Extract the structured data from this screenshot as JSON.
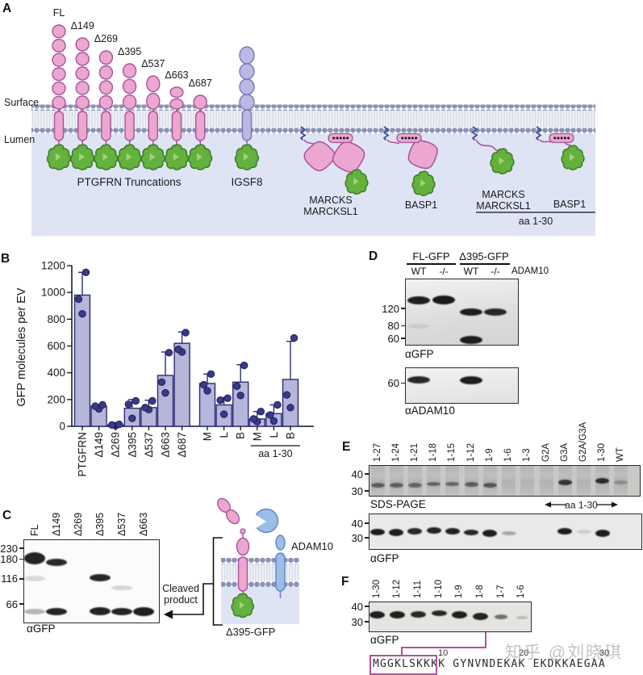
{
  "watermark": "知乎 @刘晓琪",
  "colors": {
    "pink": "#eba7d0",
    "pink_stroke": "#a8539b",
    "purple": "#bcb8e4",
    "purple_stroke": "#7b74ba",
    "green": "#64b13e",
    "green_stroke": "#3e7c27",
    "blue": "#9cbde5",
    "blue_stroke": "#5d86c4",
    "navy": "#2d2d77",
    "bar_fill": "#b6b6da",
    "dot": "#3a3a8c",
    "membrane_bead": "#8a92b6",
    "lumen_bg": "#dfe4f5",
    "anchor_zigzag": "#3b4a94",
    "magenta_box": "#b5519c"
  },
  "panelA": {
    "label": "A",
    "surface_label": "Surface",
    "lumen_label": "Lumen",
    "truncations": [
      {
        "label": "FL",
        "domains": 6
      },
      {
        "label": "Δ149",
        "domains": 5
      },
      {
        "label": "Δ269",
        "domains": 4
      },
      {
        "label": "Δ395",
        "domains": 3
      },
      {
        "label": "Δ537",
        "domains": 2
      },
      {
        "label": "Δ663",
        "domains": 2
      },
      {
        "label": "Δ687",
        "domains": 1
      }
    ],
    "truncations_caption": "PTGFRN Truncations",
    "igsf8": {
      "label": "IGSF8",
      "domains": 4
    },
    "anchored": [
      {
        "type": "marcks-full",
        "label_lines": [
          "MARCKS",
          "MARCKSL1"
        ]
      },
      {
        "type": "basp1-full",
        "label_lines": [
          "BASP1"
        ]
      },
      {
        "type": "marcks-aa30",
        "label_lines": [
          "MARCKS",
          "MARCKSL1"
        ]
      },
      {
        "type": "basp1-aa30",
        "label_lines": [
          "BASP1"
        ]
      }
    ],
    "aa_bracket_label": "aa 1-30"
  },
  "panelB": {
    "label": "B",
    "chart_data": {
      "type": "bar",
      "title": "",
      "xlabel": "",
      "ylabel": "GFP molecules per EV",
      "ylim": [
        0,
        1200
      ],
      "yticks": [
        0,
        200,
        400,
        600,
        800,
        1000,
        1200
      ],
      "grid": false,
      "categories": [
        "PTGFRN",
        "Δ149",
        "Δ269",
        "Δ395",
        "Δ537",
        "Δ663",
        "Δ687",
        "M",
        "L",
        "B",
        "M",
        "L",
        "B"
      ],
      "values": [
        980,
        150,
        10,
        135,
        140,
        380,
        620,
        320,
        160,
        330,
        55,
        95,
        350
      ],
      "error_top": [
        1150,
        163,
        15,
        200,
        195,
        555,
        705,
        390,
        215,
        460,
        110,
        160,
        635
      ],
      "points": [
        [
          840,
          950,
          1150
        ],
        [
          130,
          150,
          160
        ],
        [
          5,
          10,
          15
        ],
        [
          60,
          165,
          190
        ],
        [
          125,
          140,
          190
        ],
        [
          250,
          330,
          550
        ],
        [
          555,
          575,
          700
        ],
        [
          265,
          310,
          390
        ],
        [
          90,
          195,
          210
        ],
        [
          230,
          300,
          455
        ],
        [
          35,
          55,
          110
        ],
        [
          40,
          85,
          160
        ],
        [
          140,
          235,
          660
        ]
      ],
      "group_bracket": {
        "label": "aa 1-30",
        "from": 10,
        "to": 12
      }
    }
  },
  "panelC": {
    "label": "C",
    "lanes": [
      "FL",
      "Δ149",
      "Δ269",
      "Δ395",
      "Δ537",
      "Δ663"
    ],
    "mw_markers": [
      230,
      180,
      116,
      66
    ],
    "bands": [
      {
        "lane": 0,
        "kda": 185,
        "dark": 0.93,
        "h": 15
      },
      {
        "lane": 0,
        "kda": 116,
        "dark": 0.14,
        "h": 7
      },
      {
        "lane": 0,
        "kda": 56,
        "dark": 0.3,
        "h": 7
      },
      {
        "lane": 1,
        "kda": 168,
        "dark": 0.9,
        "h": 9
      },
      {
        "lane": 1,
        "kda": 56,
        "dark": 0.93,
        "h": 9
      },
      {
        "lane": 3,
        "kda": 118,
        "dark": 0.92,
        "h": 9
      },
      {
        "lane": 3,
        "kda": 56,
        "dark": 0.93,
        "h": 10
      },
      {
        "lane": 4,
        "kda": 95,
        "dark": 0.16,
        "h": 6
      },
      {
        "lane": 4,
        "kda": 56,
        "dark": 0.93,
        "h": 9
      },
      {
        "lane": 5,
        "kda": 56,
        "dark": 0.95,
        "h": 11
      }
    ],
    "caption": "αGFP",
    "annotation_lines": [
      "Cleaved",
      "product"
    ],
    "diagram": {
      "protease_label": "ADAM10",
      "construct_label": "Δ395-GFP"
    }
  },
  "panelD": {
    "label": "D",
    "groups": [
      {
        "label": "FL-GFP"
      },
      {
        "label": "Δ395-GFP"
      }
    ],
    "genotypes": [
      "WT",
      "-/-",
      "WT",
      "-/-"
    ],
    "gene_label": "ADAM10",
    "top_blot": {
      "mw_markers": [
        120,
        80,
        60
      ],
      "caption": "αGFP",
      "bands": [
        {
          "lane": 0,
          "kda": 145,
          "dark": 0.95,
          "h": 10
        },
        {
          "lane": 0,
          "kda": 80,
          "dark": 0.08,
          "h": 6
        },
        {
          "lane": 1,
          "kda": 145,
          "dark": 0.97,
          "h": 11
        },
        {
          "lane": 2,
          "kda": 110,
          "dark": 0.95,
          "h": 9
        },
        {
          "lane": 2,
          "kda": 58,
          "dark": 0.95,
          "h": 10
        },
        {
          "lane": 3,
          "kda": 110,
          "dark": 0.9,
          "h": 9
        }
      ]
    },
    "bottom_blot": {
      "mw_markers": [
        60
      ],
      "caption": "αADAM10",
      "bands": [
        {
          "lane": 0,
          "kda": 65,
          "dark": 0.9,
          "h": 9
        },
        {
          "lane": 2,
          "kda": 65,
          "dark": 0.95,
          "h": 10
        }
      ]
    }
  },
  "panelE": {
    "label": "E",
    "lanes": [
      "1-27",
      "1-24",
      "1-21",
      "1-18",
      "1-15",
      "1-12",
      "1-9",
      "1-6",
      "1-3",
      "G2A",
      "G3A",
      "G2A/G3A",
      "1-30",
      "WT"
    ],
    "gel1": {
      "caption": "SDS-PAGE",
      "mw_markers": [
        40,
        30
      ],
      "bands": [
        {
          "lane": 0,
          "kda": 33,
          "dark": 0.55,
          "h": 6
        },
        {
          "lane": 1,
          "kda": 33,
          "dark": 0.55,
          "h": 6
        },
        {
          "lane": 2,
          "kda": 33,
          "dark": 0.5,
          "h": 6
        },
        {
          "lane": 3,
          "kda": 33.5,
          "dark": 0.5,
          "h": 5
        },
        {
          "lane": 4,
          "kda": 33.5,
          "dark": 0.5,
          "h": 5
        },
        {
          "lane": 5,
          "kda": 33.5,
          "dark": 0.55,
          "h": 6
        },
        {
          "lane": 6,
          "kda": 33,
          "dark": 0.6,
          "h": 6
        },
        {
          "lane": 10,
          "kda": 34.5,
          "dark": 0.8,
          "h": 7
        },
        {
          "lane": 12,
          "kda": 35.5,
          "dark": 0.85,
          "h": 7
        },
        {
          "lane": 13,
          "kda": 34.5,
          "dark": 0.25,
          "h": 5
        }
      ]
    },
    "bracket_label": "aa 1-30",
    "gel2": {
      "caption": "αGFP",
      "mw_markers": [
        40,
        30
      ],
      "bands": [
        {
          "lane": 0,
          "kda": 33.5,
          "dark": 0.95,
          "h": 8
        },
        {
          "lane": 1,
          "kda": 33.5,
          "dark": 0.95,
          "h": 9
        },
        {
          "lane": 2,
          "kda": 34,
          "dark": 0.9,
          "h": 8
        },
        {
          "lane": 3,
          "kda": 34.5,
          "dark": 0.92,
          "h": 8
        },
        {
          "lane": 4,
          "kda": 34,
          "dark": 0.93,
          "h": 8
        },
        {
          "lane": 5,
          "kda": 33.5,
          "dark": 0.9,
          "h": 7
        },
        {
          "lane": 6,
          "kda": 33,
          "dark": 0.95,
          "h": 9
        },
        {
          "lane": 7,
          "kda": 33,
          "dark": 0.3,
          "h": 5
        },
        {
          "lane": 10,
          "kda": 34,
          "dark": 0.95,
          "h": 8
        },
        {
          "lane": 11,
          "kda": 34,
          "dark": 0.12,
          "h": 5
        },
        {
          "lane": 12,
          "kda": 32.5,
          "dark": 0.95,
          "h": 9
        }
      ]
    }
  },
  "panelF": {
    "label": "F",
    "lanes": [
      "1-30",
      "1-12",
      "1-11",
      "1-10",
      "1-9",
      "1-8",
      "1-7",
      "1-6"
    ],
    "mw_markers": [
      40,
      30
    ],
    "bands": [
      {
        "lane": 0,
        "kda": 34,
        "dark": 0.95,
        "h": 9
      },
      {
        "lane": 1,
        "kda": 34.3,
        "dark": 0.95,
        "h": 9
      },
      {
        "lane": 2,
        "kda": 34.5,
        "dark": 0.9,
        "h": 8
      },
      {
        "lane": 3,
        "kda": 35,
        "dark": 0.9,
        "h": 7
      },
      {
        "lane": 4,
        "kda": 34,
        "dark": 0.95,
        "h": 9
      },
      {
        "lane": 5,
        "kda": 33.3,
        "dark": 0.92,
        "h": 9
      },
      {
        "lane": 6,
        "kda": 33,
        "dark": 0.55,
        "h": 6,
        "w": 16
      },
      {
        "lane": 7,
        "kda": 32.3,
        "dark": 0.2,
        "h": 4,
        "w": 14
      }
    ],
    "caption": "αGFP",
    "sequence": "MGGKLSKKKK GYNVNDEKAK EKDKKAEGAA",
    "seq_numbers": [
      "10",
      "20",
      "30"
    ],
    "boxed_region": "MGGKLSKK"
  }
}
